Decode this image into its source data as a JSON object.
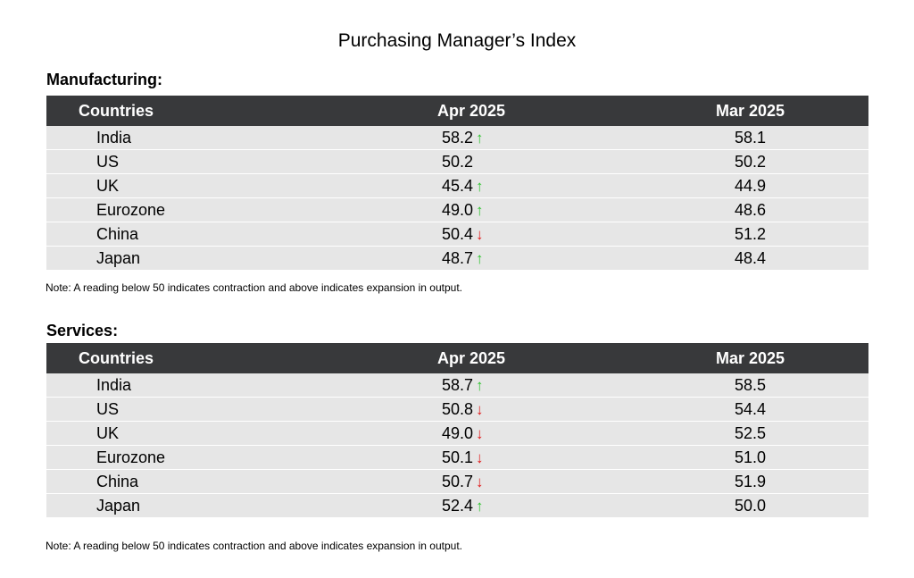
{
  "title": "Purchasing Manager’s Index",
  "arrows": {
    "up": "↑",
    "down": "↓"
  },
  "colors": {
    "header_bg": "#38393b",
    "row_bg": "#e6e6e6",
    "up": "#2ec32e",
    "down": "#e01b1b"
  },
  "chart_data": [
    {
      "type": "table",
      "title": "Manufacturing:",
      "columns": [
        "Countries",
        "Apr 2025",
        "Mar 2025"
      ],
      "rows": [
        {
          "country": "India",
          "apr": "58.2",
          "trend": "up",
          "mar": "58.1"
        },
        {
          "country": "US",
          "apr": "50.2",
          "trend": "",
          "mar": "50.2"
        },
        {
          "country": "UK",
          "apr": "45.4",
          "trend": "up",
          "mar": "44.9"
        },
        {
          "country": "Eurozone",
          "apr": "49.0",
          "trend": "up",
          "mar": "48.6"
        },
        {
          "country": "China",
          "apr": "50.4",
          "trend": "down",
          "mar": "51.2"
        },
        {
          "country": "Japan",
          "apr": "48.7",
          "trend": "up",
          "mar": "48.4"
        }
      ],
      "note": "Note: A reading below 50 indicates contraction and above indicates expansion in output."
    },
    {
      "type": "table",
      "title": "Services:",
      "columns": [
        "Countries",
        "Apr 2025",
        "Mar 2025"
      ],
      "rows": [
        {
          "country": "India",
          "apr": "58.7",
          "trend": "up",
          "mar": "58.5"
        },
        {
          "country": "US",
          "apr": "50.8",
          "trend": "down",
          "mar": "54.4"
        },
        {
          "country": "UK",
          "apr": "49.0",
          "trend": "down",
          "mar": "52.5"
        },
        {
          "country": "Eurozone",
          "apr": "50.1",
          "trend": "down",
          "mar": "51.0"
        },
        {
          "country": "China",
          "apr": "50.7",
          "trend": "down",
          "mar": "51.9"
        },
        {
          "country": "Japan",
          "apr": "52.4",
          "trend": "up",
          "mar": "50.0"
        }
      ],
      "note": "Note: A reading below 50 indicates contraction and above indicates expansion in output."
    }
  ]
}
